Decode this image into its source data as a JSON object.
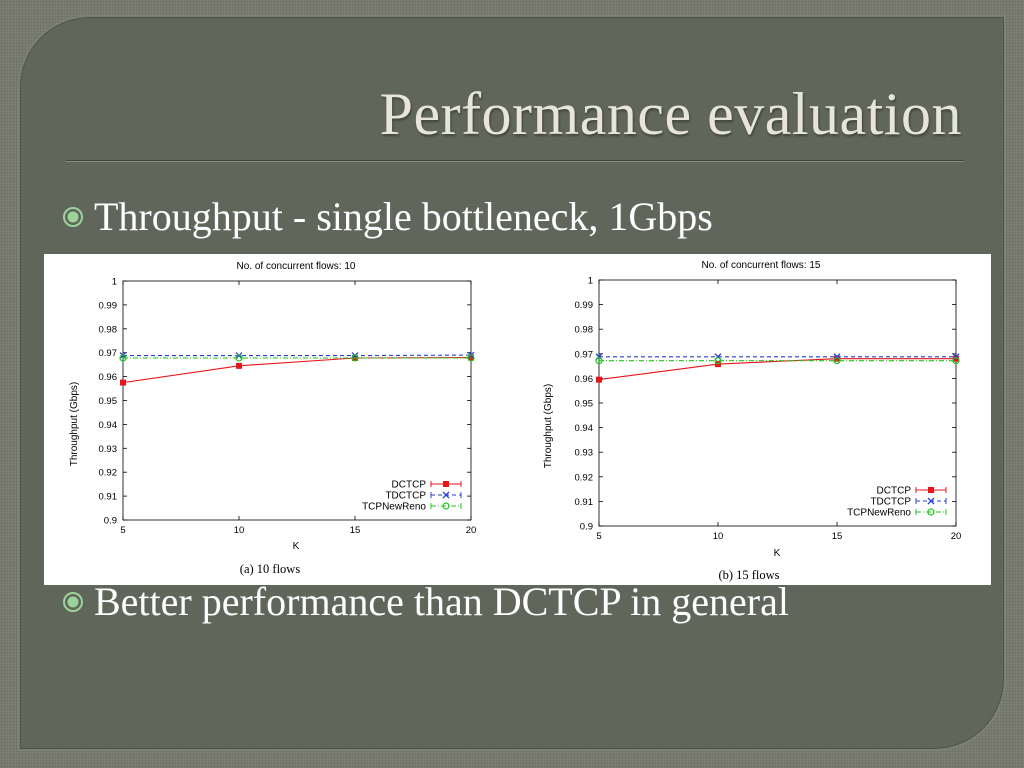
{
  "slide": {
    "title": "Performance evaluation",
    "bullets": [
      "Throughput - single bottleneck, 1Gbps",
      "Better performance than DCTCP in general"
    ],
    "colors": {
      "background": "#7b7e70",
      "panel": "#60665a",
      "title": "#e6e5d7",
      "text": "#ffffff",
      "bullet_marker": "#9bd39a"
    }
  },
  "chart_data": [
    {
      "type": "line",
      "title": "No. of concurrent flows: 10",
      "caption": "(a) 10 flows",
      "xlabel": "K",
      "ylabel": "Throughput (Gbps)",
      "x": [
        5,
        10,
        15,
        20
      ],
      "xlim": [
        5,
        20
      ],
      "ylim": [
        0.9,
        1.0
      ],
      "xticks": [
        "5",
        "10",
        "15",
        "20"
      ],
      "yticks": [
        "0.9",
        "0.91",
        "0.92",
        "0.93",
        "0.94",
        "0.95",
        "0.96",
        "0.97",
        "0.98",
        "0.99",
        "1"
      ],
      "legend_position": "bottom-right",
      "grid": false,
      "series": [
        {
          "name": "DCTCP",
          "values": [
            0.9575,
            0.9645,
            0.9678,
            0.968
          ],
          "color": "#e8151b",
          "marker": "square",
          "dash": "solid"
        },
        {
          "name": "TDCTCP",
          "values": [
            0.9688,
            0.9688,
            0.9688,
            0.969
          ],
          "color": "#2a3fd8",
          "marker": "x",
          "dash": "dashed"
        },
        {
          "name": "TCPNewReno",
          "values": [
            0.9678,
            0.9678,
            0.9678,
            0.9678
          ],
          "color": "#22c71e",
          "marker": "circle",
          "dash": "dashdot"
        }
      ]
    },
    {
      "type": "line",
      "title": "No. of concurrent flows: 15",
      "caption": "(b) 15 flows",
      "xlabel": "K",
      "ylabel": "Throughput (Gbps)",
      "x": [
        5,
        10,
        15,
        20
      ],
      "xlim": [
        5,
        20
      ],
      "ylim": [
        0.9,
        1.0
      ],
      "xticks": [
        "5",
        "10",
        "15",
        "20"
      ],
      "yticks": [
        "0.9",
        "0.91",
        "0.92",
        "0.93",
        "0.94",
        "0.95",
        "0.96",
        "0.97",
        "0.98",
        "0.99",
        "1"
      ],
      "legend_position": "bottom-right",
      "grid": false,
      "series": [
        {
          "name": "DCTCP",
          "values": [
            0.9595,
            0.9658,
            0.968,
            0.968
          ],
          "color": "#e8151b",
          "marker": "square",
          "dash": "solid"
        },
        {
          "name": "TDCTCP",
          "values": [
            0.9688,
            0.9688,
            0.9688,
            0.9688
          ],
          "color": "#2a3fd8",
          "marker": "x",
          "dash": "dashed"
        },
        {
          "name": "TCPNewReno",
          "values": [
            0.9672,
            0.9672,
            0.9672,
            0.9672
          ],
          "color": "#22c71e",
          "marker": "circle",
          "dash": "dashdot"
        }
      ]
    }
  ]
}
